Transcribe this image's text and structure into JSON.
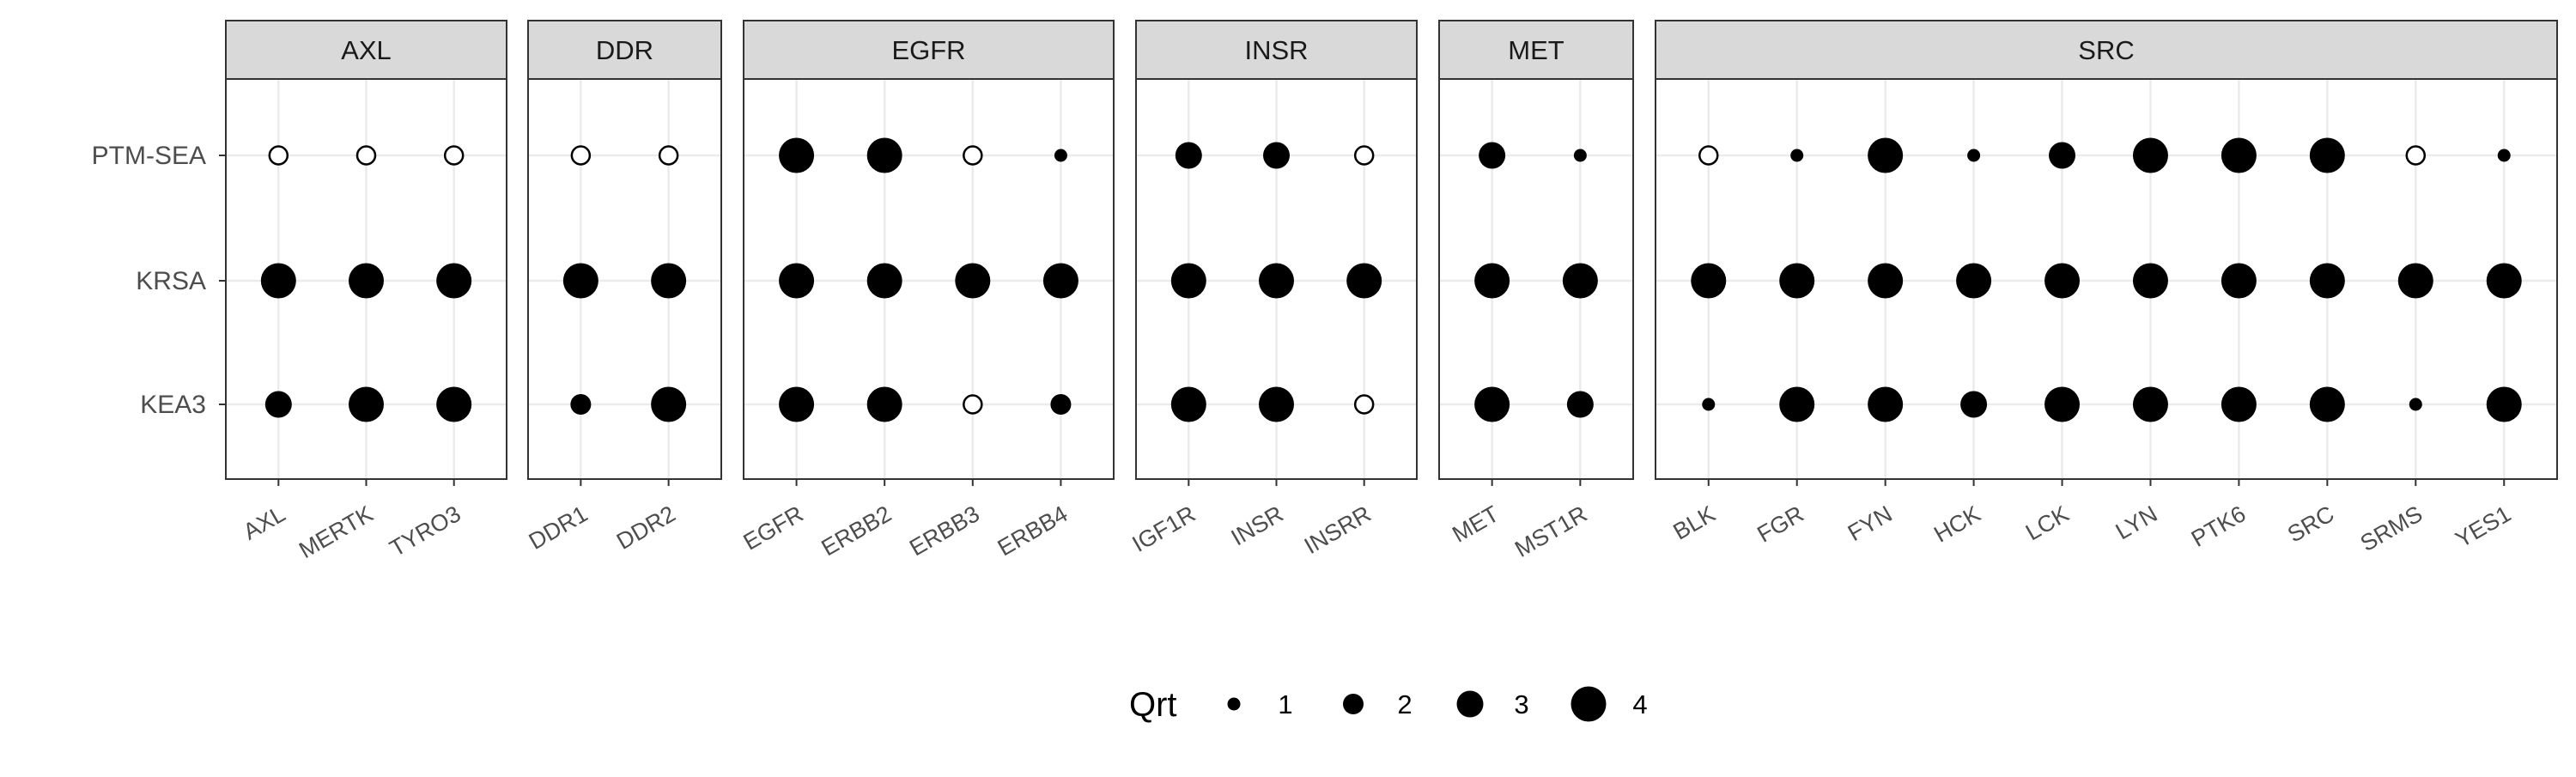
{
  "chart_data": {
    "type": "scatter",
    "title": "",
    "xlabel": "",
    "ylabel": "",
    "rows": [
      "PTM-SEA",
      "KRSA",
      "KEA3"
    ],
    "facets": [
      {
        "name": "AXL",
        "kinases": [
          "AXL",
          "MERTK",
          "TYRO3"
        ],
        "values": [
          [
            0,
            0,
            0
          ],
          [
            4,
            4,
            4
          ],
          [
            3,
            4,
            4
          ]
        ]
      },
      {
        "name": "DDR",
        "kinases": [
          "DDR1",
          "DDR2"
        ],
        "values": [
          [
            0,
            0
          ],
          [
            4,
            4
          ],
          [
            2,
            4
          ]
        ]
      },
      {
        "name": "EGFR",
        "kinases": [
          "EGFR",
          "ERBB2",
          "ERBB3",
          "ERBB4"
        ],
        "values": [
          [
            4,
            4,
            0,
            1
          ],
          [
            4,
            4,
            4,
            4
          ],
          [
            4,
            4,
            0,
            2
          ]
        ]
      },
      {
        "name": "INSR",
        "kinases": [
          "IGF1R",
          "INSR",
          "INSRR"
        ],
        "values": [
          [
            3,
            3,
            0
          ],
          [
            4,
            4,
            4
          ],
          [
            4,
            4,
            0
          ]
        ]
      },
      {
        "name": "MET",
        "kinases": [
          "MET",
          "MST1R"
        ],
        "values": [
          [
            3,
            1
          ],
          [
            4,
            4
          ],
          [
            4,
            3
          ]
        ]
      },
      {
        "name": "SRC",
        "kinases": [
          "BLK",
          "FGR",
          "FYN",
          "HCK",
          "LCK",
          "LYN",
          "PTK6",
          "SRC",
          "SRMS",
          "YES1"
        ],
        "values": [
          [
            0,
            1,
            4,
            1,
            3,
            4,
            4,
            4,
            0,
            1
          ],
          [
            4,
            4,
            4,
            4,
            4,
            4,
            4,
            4,
            4,
            4
          ],
          [
            1,
            4,
            4,
            3,
            4,
            4,
            4,
            4,
            1,
            4
          ]
        ]
      }
    ],
    "legend": {
      "title": "Qrt",
      "position": "bottom",
      "items": [
        {
          "label": "1",
          "value": 1
        },
        {
          "label": "2",
          "value": 2
        },
        {
          "label": "3",
          "value": 3
        },
        {
          "label": "4",
          "value": 4
        }
      ]
    },
    "colors": {
      "point": "#000000",
      "strip": "#d9d9d9",
      "grid": "#ebebeb",
      "border": "#333333",
      "text": "#4d4d4d"
    }
  }
}
